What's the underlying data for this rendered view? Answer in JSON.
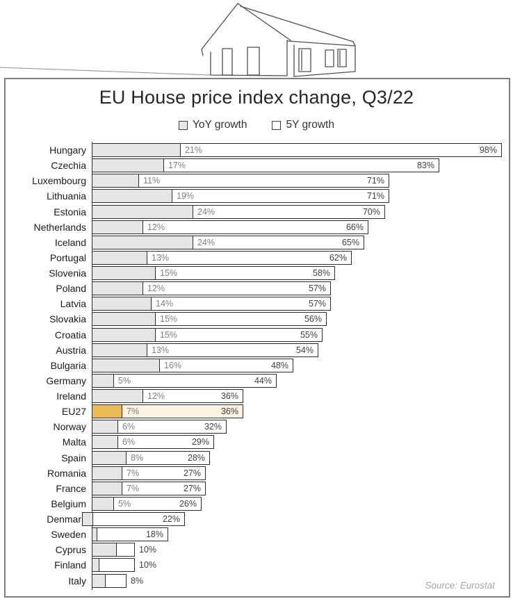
{
  "header": {
    "title": "EU House price index change, Q3/22",
    "legend": [
      {
        "label": "YoY growth",
        "swatch_fill": "#e6e6e6"
      },
      {
        "label": "5Y growth",
        "swatch_fill": "#ffffff"
      }
    ]
  },
  "footer": {
    "source": "Source: Eurostat"
  },
  "icons": {
    "house": "house-line-art-illustration"
  },
  "colors": {
    "bar_fill": "#e6e6e6",
    "bar_border": "#2b2b2b",
    "highlight_bar_fill": "#ebba55",
    "highlight_track_fill": "#faf3e2",
    "yoy_label_text": "#7f7f7f",
    "five_y_label_text": "#404040",
    "frame_border": "#7f7f7f",
    "axis_line": "#404040",
    "country_text": "#1a1a1a",
    "source_text": "#a6a6a6",
    "house_line": "#4d4d4d"
  },
  "chart_data": {
    "type": "bar",
    "orientation": "horizontal",
    "title": "EU House price index change, Q3/22",
    "series_names": [
      "YoY growth",
      "5Y growth"
    ],
    "unit": "%",
    "xlim": [
      0,
      100
    ],
    "grid": false,
    "legend_position": "top",
    "rows": [
      {
        "country": "Hungary",
        "yoy": 21,
        "yoy_label": "21%",
        "five_y": 98,
        "five_y_label": "98%",
        "highlight": false
      },
      {
        "country": "Czechia",
        "yoy": 17,
        "yoy_label": "17%",
        "five_y": 83,
        "five_y_label": "83%",
        "highlight": false
      },
      {
        "country": "Luxembourg",
        "yoy": 11,
        "yoy_label": "11%",
        "five_y": 71,
        "five_y_label": "71%",
        "highlight": false
      },
      {
        "country": "Lithuania",
        "yoy": 19,
        "yoy_label": "19%",
        "five_y": 71,
        "five_y_label": "71%",
        "highlight": false
      },
      {
        "country": "Estonia",
        "yoy": 24,
        "yoy_label": "24%",
        "five_y": 70,
        "five_y_label": "70%",
        "highlight": false
      },
      {
        "country": "Netherlands",
        "yoy": 12,
        "yoy_label": "12%",
        "five_y": 66,
        "five_y_label": "66%",
        "highlight": false
      },
      {
        "country": "Iceland",
        "yoy": 24,
        "yoy_label": "24%",
        "five_y": 65,
        "five_y_label": "65%",
        "highlight": false
      },
      {
        "country": "Portugal",
        "yoy": 13,
        "yoy_label": "13%",
        "five_y": 62,
        "five_y_label": "62%",
        "highlight": false
      },
      {
        "country": "Slovenia",
        "yoy": 15,
        "yoy_label": "15%",
        "five_y": 58,
        "five_y_label": "58%",
        "highlight": false
      },
      {
        "country": "Poland",
        "yoy": 12,
        "yoy_label": "12%",
        "five_y": 57,
        "five_y_label": "57%",
        "highlight": false
      },
      {
        "country": "Latvia",
        "yoy": 14,
        "yoy_label": "14%",
        "five_y": 57,
        "five_y_label": "57%",
        "highlight": false
      },
      {
        "country": "Slovakia",
        "yoy": 15,
        "yoy_label": "15%",
        "five_y": 56,
        "five_y_label": "56%",
        "highlight": false
      },
      {
        "country": "Croatia",
        "yoy": 15,
        "yoy_label": "15%",
        "five_y": 55,
        "five_y_label": "55%",
        "highlight": false
      },
      {
        "country": "Austria",
        "yoy": 13,
        "yoy_label": "13%",
        "five_y": 54,
        "five_y_label": "54%",
        "highlight": false
      },
      {
        "country": "Bulgaria",
        "yoy": 16,
        "yoy_label": "16%",
        "five_y": 48,
        "five_y_label": "48%",
        "highlight": false
      },
      {
        "country": "Germany",
        "yoy": 5,
        "yoy_label": "5%",
        "five_y": 44,
        "five_y_label": "44%",
        "highlight": false
      },
      {
        "country": "Ireland",
        "yoy": 12,
        "yoy_label": "12%",
        "five_y": 36,
        "five_y_label": "36%",
        "highlight": false
      },
      {
        "country": "EU27",
        "yoy": 7,
        "yoy_label": "7%",
        "five_y": 36,
        "five_y_label": "36%",
        "highlight": true
      },
      {
        "country": "Norway",
        "yoy": 6,
        "yoy_label": "6%",
        "five_y": 32,
        "five_y_label": "32%",
        "highlight": false
      },
      {
        "country": "Malta",
        "yoy": 6,
        "yoy_label": "6%",
        "five_y": 29,
        "five_y_label": "29%",
        "highlight": false
      },
      {
        "country": "Spain",
        "yoy": 8,
        "yoy_label": "8%",
        "five_y": 28,
        "five_y_label": "28%",
        "highlight": false
      },
      {
        "country": "Romania",
        "yoy": 7,
        "yoy_label": "7%",
        "five_y": 27,
        "five_y_label": "27%",
        "highlight": false
      },
      {
        "country": "France",
        "yoy": 7,
        "yoy_label": "7%",
        "five_y": 27,
        "five_y_label": "27%",
        "highlight": false
      },
      {
        "country": "Belgium",
        "yoy": 5,
        "yoy_label": "5%",
        "five_y": 26,
        "five_y_label": "26%",
        "highlight": false
      },
      {
        "country": "Denmark",
        "yoy": -2.3,
        "yoy_label": "",
        "five_y": 22,
        "five_y_label": "22%",
        "highlight": false
      },
      {
        "country": "Sweden",
        "yoy": 1,
        "yoy_label": "",
        "five_y": 18,
        "five_y_label": "18%",
        "highlight": false
      },
      {
        "country": "Cyprus",
        "yoy": 5.7,
        "yoy_label": "",
        "five_y": 10,
        "five_y_label": "10%",
        "highlight": false
      },
      {
        "country": "Finland",
        "yoy": 1.5,
        "yoy_label": "",
        "five_y": 10,
        "five_y_label": "10%",
        "highlight": false
      },
      {
        "country": "Italy",
        "yoy": 3,
        "yoy_label": "",
        "five_y": 8,
        "five_y_label": "8%",
        "highlight": false
      }
    ]
  }
}
